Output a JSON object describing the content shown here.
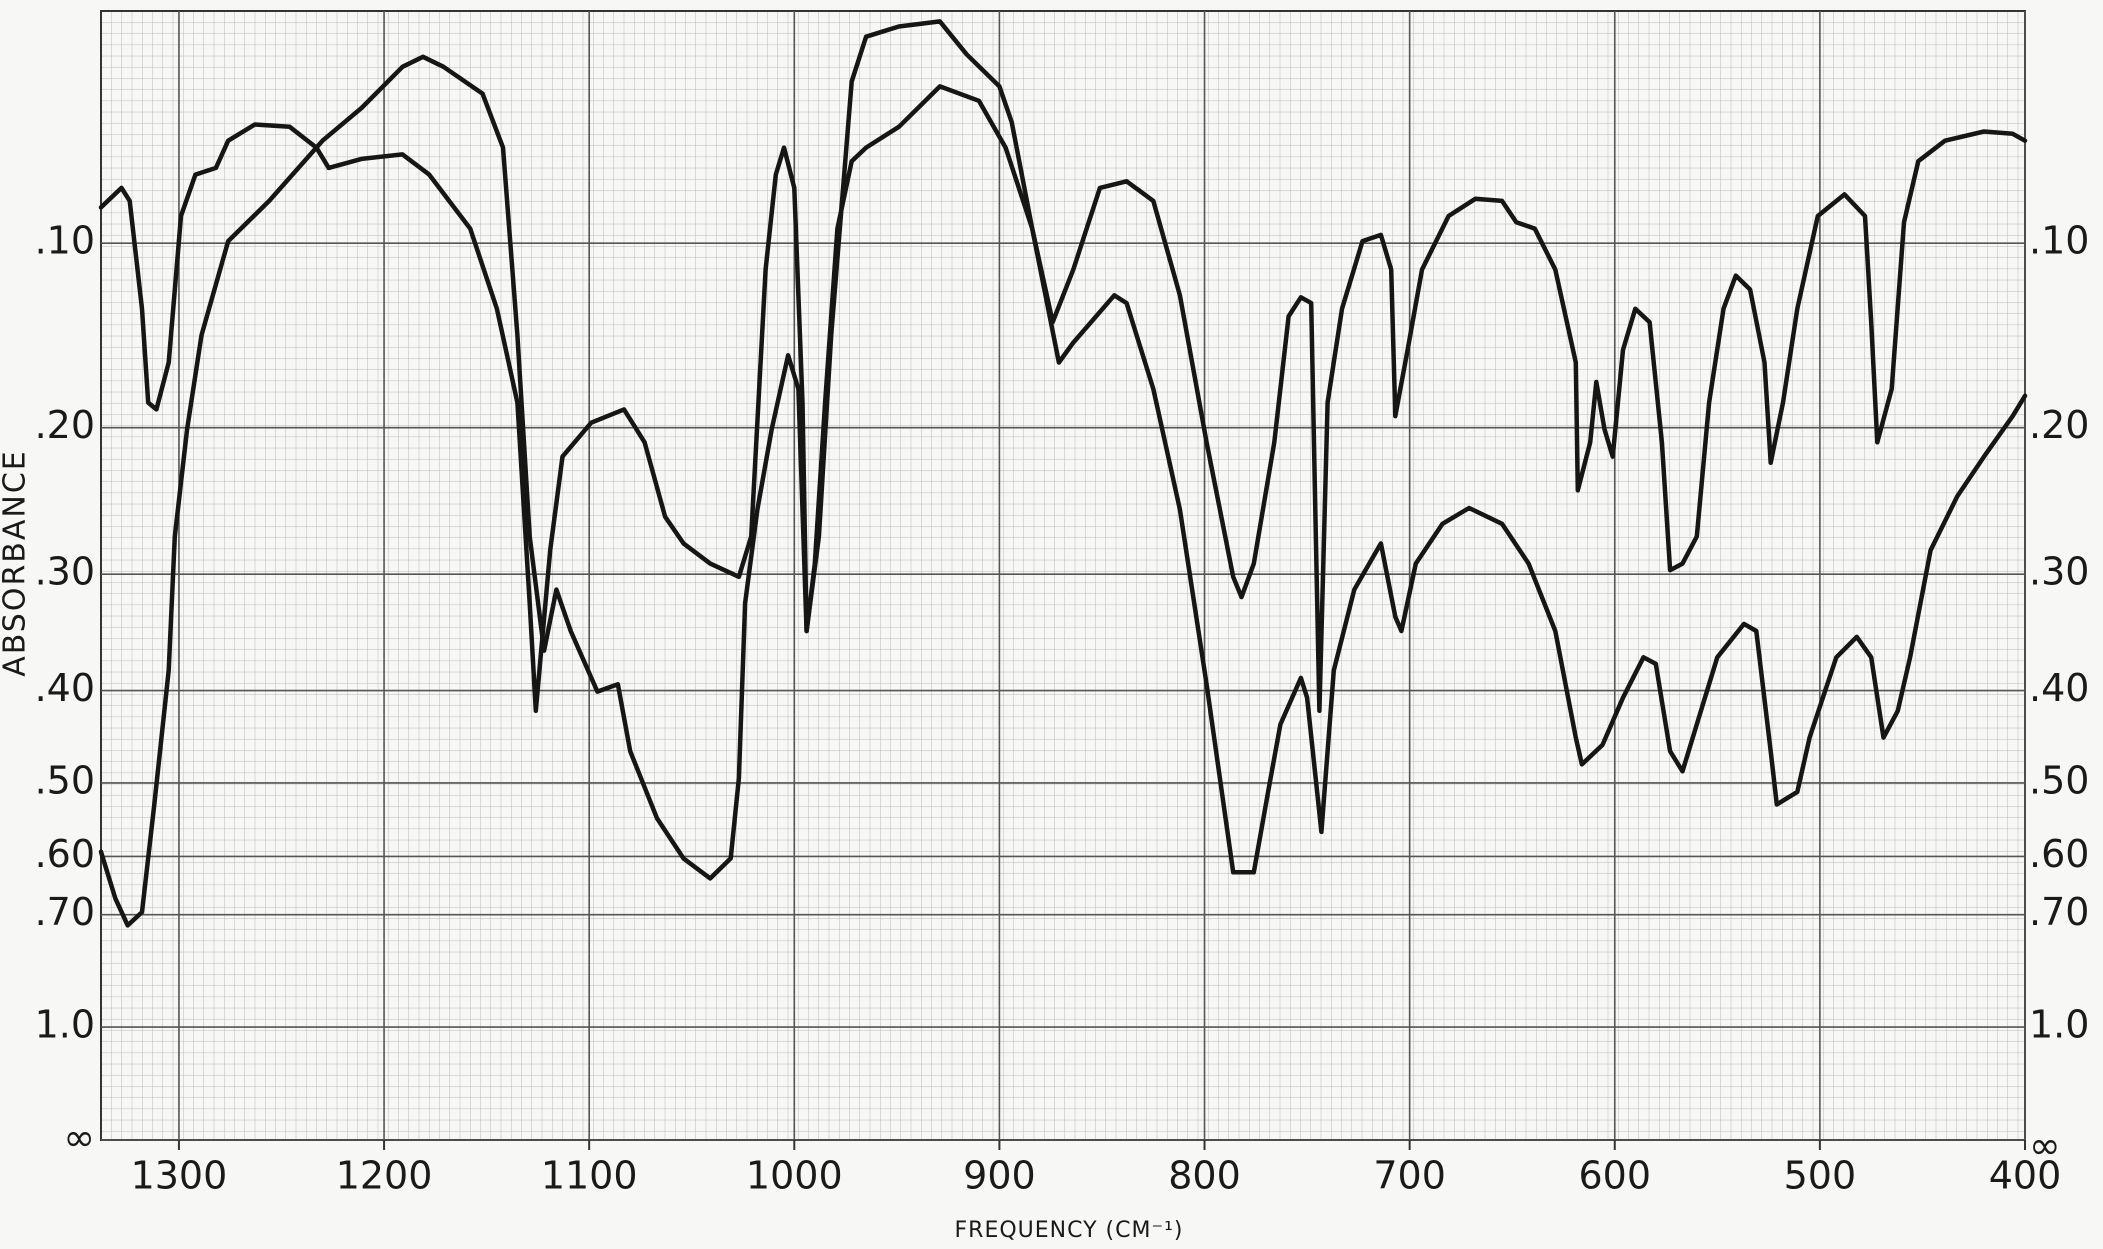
{
  "chart_data": {
    "type": "line",
    "xlabel": "FREQUENCY (CM⁻¹)",
    "ylabel": "ABSORBANCE",
    "xlim": [
      1338,
      400
    ],
    "xticks": [
      1300,
      1200,
      1100,
      1000,
      900,
      800,
      700,
      600,
      500,
      400
    ],
    "yscale": "absorbance",
    "ylim": [
      0,
      null
    ],
    "yticks": [
      {
        "value": 0.1,
        "label": ".10"
      },
      {
        "value": 0.2,
        "label": ".20"
      },
      {
        "value": 0.3,
        "label": ".30"
      },
      {
        "value": 0.4,
        "label": ".40"
      },
      {
        "value": 0.5,
        "label": ".50"
      },
      {
        "value": 0.6,
        "label": ".60"
      },
      {
        "value": 0.7,
        "label": ".70"
      },
      {
        "value": 1.0,
        "label": "1.0"
      },
      {
        "value": null,
        "label": "∞"
      }
    ],
    "grid": true,
    "series": [
      {
        "color": "#161616",
        "x": [
          1338,
          1328,
          1324,
          1318,
          1315,
          1311,
          1305,
          1299,
          1292,
          1282,
          1276,
          1263,
          1246,
          1233,
          1227,
          1211,
          1191,
          1178,
          1158,
          1145,
          1135,
          1129,
          1126,
          1119,
          1113,
          1099,
          1083,
          1073,
          1063,
          1054,
          1041,
          1027,
          1021,
          1014,
          1009,
          1005,
          1000,
          996,
          994,
          990,
          985,
          979,
          972,
          965,
          949,
          929,
          910,
          897,
          884,
          874,
          864,
          851,
          838,
          825,
          812,
          799,
          786,
          782,
          776,
          766,
          759,
          753,
          748,
          746,
          744,
          740,
          733,
          723,
          714,
          709,
          707,
          701,
          694,
          681,
          668,
          655,
          648,
          639,
          629,
          619,
          618,
          612,
          609,
          605,
          601,
          596,
          590,
          583,
          577,
          573,
          567,
          560,
          554,
          547,
          541,
          534,
          527,
          524,
          518,
          511,
          501,
          488,
          478,
          475,
          472,
          465,
          459,
          452,
          439,
          420,
          406,
          400
        ],
        "values": [
          0.083,
          0.074,
          0.08,
          0.133,
          0.185,
          0.189,
          0.162,
          0.087,
          0.068,
          0.065,
          0.053,
          0.046,
          0.047,
          0.056,
          0.065,
          0.061,
          0.059,
          0.068,
          0.093,
          0.133,
          0.185,
          0.323,
          0.42,
          0.282,
          0.218,
          0.197,
          0.189,
          0.209,
          0.258,
          0.277,
          0.292,
          0.302,
          0.272,
          0.113,
          0.068,
          0.056,
          0.074,
          0.185,
          0.346,
          0.292,
          0.185,
          0.093,
          0.062,
          0.056,
          0.047,
          0.03,
          0.036,
          0.056,
          0.093,
          0.14,
          0.113,
          0.074,
          0.071,
          0.08,
          0.126,
          0.209,
          0.302,
          0.318,
          0.292,
          0.209,
          0.137,
          0.127,
          0.13,
          0.253,
          0.42,
          0.185,
          0.133,
          0.099,
          0.096,
          0.113,
          0.193,
          0.155,
          0.113,
          0.087,
          0.079,
          0.08,
          0.09,
          0.093,
          0.113,
          0.162,
          0.24,
          0.209,
          0.173,
          0.201,
          0.218,
          0.155,
          0.133,
          0.14,
          0.209,
          0.297,
          0.292,
          0.272,
          0.185,
          0.133,
          0.116,
          0.123,
          0.162,
          0.222,
          0.185,
          0.133,
          0.087,
          0.077,
          0.087,
          0.14,
          0.209,
          0.177,
          0.09,
          0.062,
          0.053,
          0.049,
          0.05,
          0.053
        ]
      },
      {
        "color": "#161616",
        "x": [
          1338,
          1331,
          1325,
          1318,
          1312,
          1305,
          1302,
          1296,
          1289,
          1276,
          1256,
          1230,
          1211,
          1191,
          1181,
          1171,
          1152,
          1142,
          1135,
          1129,
          1122,
          1116,
          1109,
          1096,
          1086,
          1080,
          1067,
          1054,
          1041,
          1031,
          1027,
          1024,
          1018,
          1011,
          1003,
          998,
          994,
          988,
          982,
          972,
          965,
          949,
          929,
          916,
          900,
          894,
          884,
          871,
          864,
          844,
          838,
          825,
          812,
          799,
          786,
          776,
          769,
          763,
          753,
          750,
          743,
          740,
          737,
          727,
          714,
          707,
          704,
          697,
          684,
          671,
          655,
          642,
          629,
          619,
          616,
          606,
          596,
          586,
          580,
          573,
          567,
          560,
          550,
          537,
          531,
          524,
          521,
          511,
          505,
          492,
          482,
          475,
          469,
          462,
          456,
          446,
          433,
          420,
          406,
          400
        ],
        "values": [
          0.593,
          0.67,
          0.721,
          0.695,
          0.527,
          0.381,
          0.272,
          0.201,
          0.147,
          0.099,
          0.08,
          0.053,
          0.039,
          0.022,
          0.018,
          0.022,
          0.033,
          0.056,
          0.147,
          0.272,
          0.363,
          0.312,
          0.346,
          0.401,
          0.394,
          0.463,
          0.545,
          0.603,
          0.635,
          0.603,
          0.494,
          0.323,
          0.253,
          0.201,
          0.158,
          0.177,
          0.346,
          0.272,
          0.147,
          0.028,
          0.01,
          0.006,
          0.004,
          0.017,
          0.03,
          0.045,
          0.093,
          0.162,
          0.151,
          0.126,
          0.13,
          0.177,
          0.253,
          0.394,
          0.625,
          0.625,
          0.511,
          0.434,
          0.388,
          0.407,
          0.564,
          0.463,
          0.381,
          0.312,
          0.277,
          0.334,
          0.346,
          0.292,
          0.263,
          0.252,
          0.263,
          0.292,
          0.346,
          0.448,
          0.478,
          0.456,
          0.407,
          0.369,
          0.375,
          0.463,
          0.486,
          0.434,
          0.369,
          0.34,
          0.346,
          0.463,
          0.527,
          0.511,
          0.448,
          0.369,
          0.351,
          0.369,
          0.448,
          0.42,
          0.369,
          0.282,
          0.244,
          0.218,
          0.193,
          0.181
        ]
      }
    ]
  }
}
